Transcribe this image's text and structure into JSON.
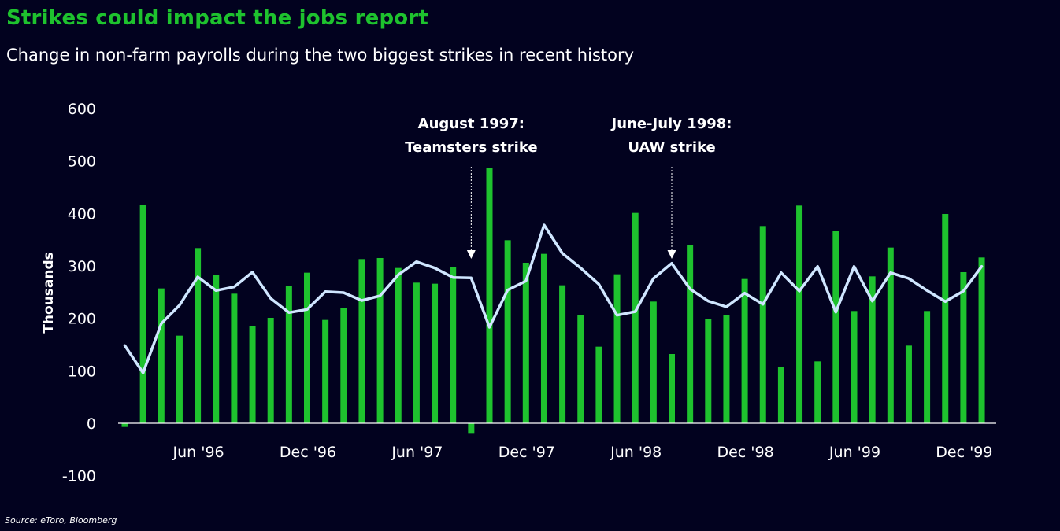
{
  "title": "Strikes could impact the jobs report",
  "subtitle": "Change in non-farm payrolls during the two biggest strikes in recent history",
  "source": "Source: eToro, Bloomberg",
  "colors": {
    "background": "#02021f",
    "bar": "#1ec22e",
    "line": "#cfe6ff",
    "title": "#1ec22e",
    "text": "#ffffff"
  },
  "chart_data": {
    "type": "bar",
    "ylabel": "Thousands",
    "ylim": [
      -100,
      600
    ],
    "yticks": [
      -100,
      0,
      100,
      200,
      300,
      400,
      500,
      600
    ],
    "grid": false,
    "xtick_labels": [
      {
        "index": 4,
        "label": "Jun '96"
      },
      {
        "index": 10,
        "label": "Dec '96"
      },
      {
        "index": 16,
        "label": "Jun '97"
      },
      {
        "index": 22,
        "label": "Dec '97"
      },
      {
        "index": 28,
        "label": "Jun '98"
      },
      {
        "index": 34,
        "label": "Dec '98"
      },
      {
        "index": 40,
        "label": "Jun '99"
      },
      {
        "index": 46,
        "label": "Dec '99"
      }
    ],
    "series": [
      {
        "type": "bar",
        "values": [
          -7,
          417,
          257,
          167,
          334,
          283,
          247,
          186,
          201,
          262,
          287,
          197,
          220,
          313,
          315,
          296,
          268,
          266,
          298,
          -20,
          486,
          349,
          306,
          323,
          263,
          207,
          146,
          284,
          401,
          232,
          132,
          340,
          199,
          206,
          275,
          376,
          107,
          415,
          118,
          366,
          214,
          280,
          335,
          148,
          214,
          399,
          288,
          316
        ]
      },
      {
        "type": "line",
        "values": [
          148,
          96,
          190,
          225,
          279,
          253,
          260,
          288,
          238,
          211,
          217,
          251,
          249,
          234,
          243,
          283,
          308,
          296,
          278,
          277,
          183,
          254,
          271,
          378,
          324,
          296,
          265,
          206,
          213,
          276,
          305,
          256,
          233,
          222,
          248,
          227,
          287,
          252,
          299,
          212,
          299,
          233,
          287,
          276,
          253,
          232,
          252,
          299
        ]
      }
    ],
    "annotations": [
      {
        "index": 19,
        "line1": "August 1997:",
        "line2": "Teamsters strike"
      },
      {
        "index": 30,
        "line1": "June-July 1998:",
        "line2": "UAW strike"
      }
    ]
  }
}
